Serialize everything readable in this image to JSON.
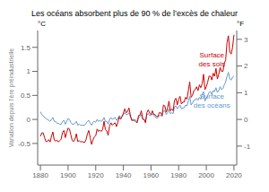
{
  "chart_data": {
    "type": "line",
    "title": "Les océans absorbent plus de 90 % de l’excès de chaleur",
    "y_label": "Variation depuis l’ère préindustrielle",
    "y_unit": "°C",
    "y2_unit": "°F",
    "grid": false,
    "x": [
      1880,
      1881,
      1882,
      1883,
      1884,
      1885,
      1886,
      1887,
      1888,
      1889,
      1890,
      1891,
      1892,
      1893,
      1894,
      1895,
      1896,
      1897,
      1898,
      1899,
      1900,
      1901,
      1902,
      1903,
      1904,
      1905,
      1906,
      1907,
      1908,
      1909,
      1910,
      1911,
      1912,
      1913,
      1914,
      1915,
      1916,
      1917,
      1918,
      1919,
      1920,
      1921,
      1922,
      1923,
      1924,
      1925,
      1926,
      1927,
      1928,
      1929,
      1930,
      1931,
      1932,
      1933,
      1934,
      1935,
      1936,
      1937,
      1938,
      1939,
      1940,
      1941,
      1942,
      1943,
      1944,
      1945,
      1946,
      1947,
      1948,
      1949,
      1950,
      1951,
      1952,
      1953,
      1954,
      1955,
      1956,
      1957,
      1958,
      1959,
      1960,
      1961,
      1962,
      1963,
      1964,
      1965,
      1966,
      1967,
      1968,
      1969,
      1970,
      1971,
      1972,
      1973,
      1974,
      1975,
      1976,
      1977,
      1978,
      1979,
      1980,
      1981,
      1982,
      1983,
      1984,
      1985,
      1986,
      1987,
      1988,
      1989,
      1990,
      1991,
      1992,
      1993,
      1994,
      1995,
      1996,
      1997,
      1998,
      1999,
      2000,
      2001,
      2002,
      2003,
      2004,
      2005,
      2006,
      2007,
      2008,
      2009,
      2010,
      2011,
      2012,
      2013,
      2014,
      2015,
      2016,
      2017,
      2018,
      2019,
      2020
    ],
    "xlim": [
      1878,
      2022
    ],
    "xticks": [
      1880,
      1900,
      1920,
      1940,
      1960,
      1980,
      2000,
      2020
    ],
    "ylim": [
      -0.95,
      1.85
    ],
    "yticks": [
      -0.5,
      0,
      0.5,
      1,
      1.5
    ],
    "y2lim": [
      -1.71,
      3.33
    ],
    "y2ticks": [
      -1,
      0,
      1,
      2,
      3
    ],
    "series": [
      {
        "name": "Surface\ndes océans",
        "color": "#6699cc",
        "values": [
          0.16,
          0.1,
          0.08,
          0.04,
          0.02,
          0.0,
          -0.02,
          -0.04,
          0.0,
          0.04,
          -0.04,
          -0.04,
          -0.08,
          -0.08,
          -0.1,
          -0.1,
          -0.04,
          -0.02,
          -0.1,
          -0.04,
          0.02,
          0.0,
          -0.06,
          -0.1,
          -0.1,
          -0.08,
          -0.04,
          -0.12,
          -0.1,
          -0.12,
          -0.12,
          -0.12,
          -0.12,
          -0.08,
          -0.04,
          -0.02,
          -0.08,
          -0.12,
          -0.06,
          -0.04,
          -0.06,
          0.0,
          -0.04,
          -0.02,
          -0.04,
          -0.02,
          0.04,
          -0.04,
          -0.04,
          -0.1,
          0.0,
          0.04,
          0.0,
          0.02,
          0.04,
          -0.02,
          0.02,
          0.08,
          0.04,
          0.06,
          0.1,
          0.14,
          0.1,
          0.1,
          0.14,
          0.06,
          0.0,
          0.0,
          0.0,
          -0.02,
          -0.04,
          0.04,
          0.06,
          0.1,
          0.0,
          0.0,
          -0.04,
          0.1,
          0.12,
          0.08,
          0.08,
          0.12,
          0.08,
          0.06,
          0.02,
          0.04,
          0.08,
          0.08,
          0.06,
          0.18,
          0.18,
          0.1,
          0.14,
          0.22,
          0.12,
          0.14,
          0.12,
          0.26,
          0.28,
          0.22,
          0.26,
          0.3,
          0.22,
          0.24,
          0.24,
          0.3,
          0.28,
          0.38,
          0.48,
          0.3,
          0.34,
          0.4,
          0.4,
          0.44,
          0.4,
          0.46,
          0.42,
          0.52,
          0.58,
          0.38,
          0.44,
          0.5,
          0.56,
          0.58,
          0.52,
          0.6,
          0.58,
          0.66,
          0.56,
          0.6,
          0.68,
          0.62,
          0.64,
          0.72,
          0.78,
          0.9,
          0.98,
          0.84,
          0.82,
          0.88,
          0.9
        ]
      },
      {
        "name": "Surface\ndes sols",
        "color": "#cc0000",
        "values": [
          -0.35,
          -0.28,
          -0.28,
          -0.38,
          -0.46,
          -0.46,
          -0.42,
          -0.47,
          -0.35,
          -0.26,
          -0.43,
          -0.45,
          -0.43,
          -0.47,
          -0.44,
          -0.41,
          -0.27,
          -0.23,
          -0.38,
          -0.27,
          -0.18,
          -0.2,
          -0.32,
          -0.44,
          -0.46,
          -0.41,
          -0.3,
          -0.46,
          -0.44,
          -0.47,
          -0.46,
          -0.47,
          -0.48,
          -0.42,
          -0.3,
          -0.23,
          -0.38,
          -0.52,
          -0.43,
          -0.36,
          -0.34,
          -0.2,
          -0.25,
          -0.22,
          -0.25,
          -0.21,
          -0.04,
          -0.21,
          -0.24,
          -0.33,
          -0.14,
          -0.07,
          -0.12,
          -0.09,
          -0.07,
          -0.15,
          -0.06,
          0.05,
          0.0,
          0.06,
          0.13,
          0.22,
          0.14,
          0.16,
          0.24,
          0.1,
          -0.02,
          -0.02,
          -0.02,
          -0.05,
          -0.07,
          0.08,
          0.09,
          0.18,
          0.01,
          0.0,
          -0.07,
          0.14,
          0.2,
          0.13,
          0.1,
          0.18,
          0.1,
          0.1,
          0.06,
          0.06,
          0.14,
          0.14,
          0.08,
          0.3,
          0.28,
          0.15,
          0.24,
          0.38,
          0.18,
          0.22,
          0.18,
          0.4,
          0.44,
          0.3,
          0.42,
          0.48,
          0.32,
          0.36,
          0.36,
          0.46,
          0.42,
          0.6,
          0.78,
          0.46,
          0.5,
          0.6,
          0.62,
          0.68,
          0.6,
          0.72,
          0.66,
          0.74,
          0.94,
          0.62,
          0.68,
          0.78,
          0.9,
          0.9,
          0.82,
          0.96,
          0.9,
          1.06,
          0.84,
          0.94,
          1.08,
          1.0,
          1.0,
          1.16,
          1.24,
          1.6,
          1.74,
          1.4,
          1.36,
          1.5,
          1.76
        ]
      }
    ]
  }
}
